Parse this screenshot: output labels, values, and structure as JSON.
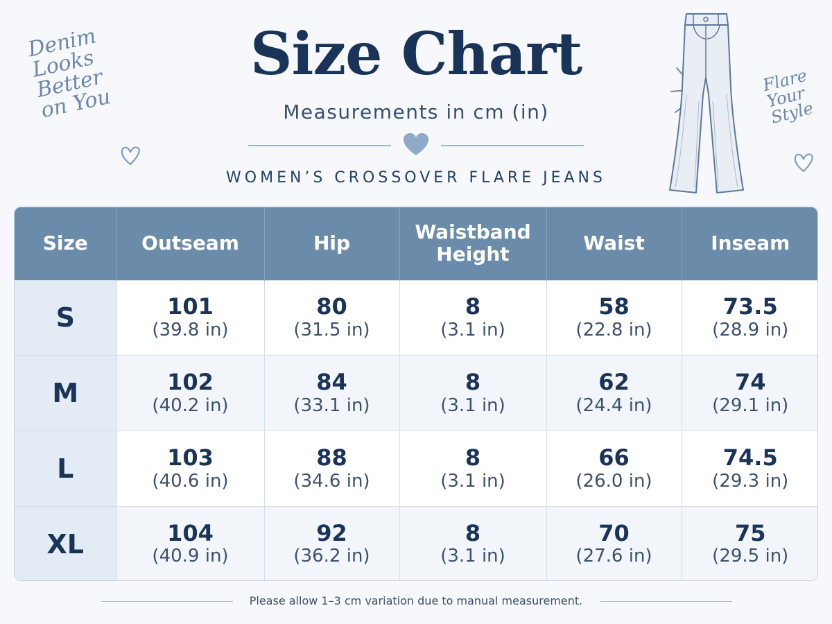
{
  "header": {
    "title": "Size Chart",
    "subtitle": "Measurements in cm (in)",
    "product": "WOMEN’S CROSSOVER FLARE JEANS"
  },
  "decor": {
    "left_script": [
      "Denim",
      "Looks",
      "Better",
      "on You"
    ],
    "right_script": [
      "Flare",
      "Your",
      "Style"
    ],
    "icons": [
      "heart-icon",
      "jeans-illustration"
    ],
    "accent_color": "#6b8bab"
  },
  "chart_data": {
    "type": "table",
    "columns": [
      "Size",
      "Outseam",
      "Hip",
      "Waistband Height",
      "Waist",
      "Inseam"
    ],
    "rows": [
      {
        "size": "S",
        "values": [
          {
            "cm": "101",
            "in": "(39.8 in)"
          },
          {
            "cm": "80",
            "in": "(31.5 in)"
          },
          {
            "cm": "8",
            "in": "(3.1 in)"
          },
          {
            "cm": "58",
            "in": "(22.8 in)"
          },
          {
            "cm": "73.5",
            "in": "(28.9 in)"
          }
        ]
      },
      {
        "size": "M",
        "values": [
          {
            "cm": "102",
            "in": "(40.2 in)"
          },
          {
            "cm": "84",
            "in": "(33.1 in)"
          },
          {
            "cm": "8",
            "in": "(3.1 in)"
          },
          {
            "cm": "62",
            "in": "(24.4 in)"
          },
          {
            "cm": "74",
            "in": "(29.1 in)"
          }
        ]
      },
      {
        "size": "L",
        "values": [
          {
            "cm": "103",
            "in": "(40.6 in)"
          },
          {
            "cm": "88",
            "in": "(34.6 in)"
          },
          {
            "cm": "8",
            "in": "(3.1 in)"
          },
          {
            "cm": "66",
            "in": "(26.0 in)"
          },
          {
            "cm": "74.5",
            "in": "(29.3 in)"
          }
        ]
      },
      {
        "size": "XL",
        "values": [
          {
            "cm": "104",
            "in": "(40.9 in)"
          },
          {
            "cm": "92",
            "in": "(36.2 in)"
          },
          {
            "cm": "8",
            "in": "(3.1 in)"
          },
          {
            "cm": "70",
            "in": "(27.6 in)"
          },
          {
            "cm": "75",
            "in": "(29.5 in)"
          }
        ]
      }
    ]
  },
  "footer": {
    "note": "Please allow 1–3 cm variation due to manual measurement."
  }
}
